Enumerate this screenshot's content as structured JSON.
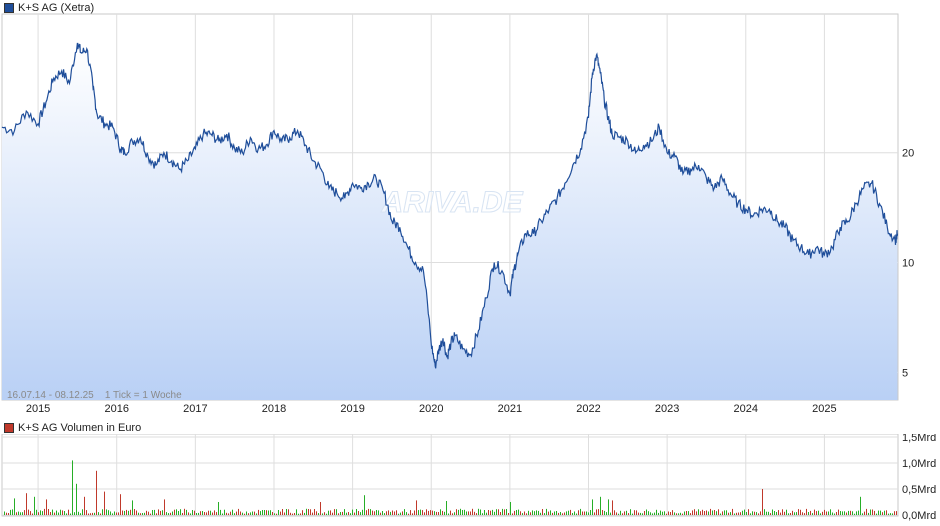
{
  "price_chart": {
    "legend_label": "K+S AG (Xetra)",
    "legend_color": "#1f4e9a",
    "info_text": "16.07.14 - 08.12.25    1 Tick = 1 Woche",
    "watermark": "ARIVA.DE"
  },
  "volume_chart": {
    "legend_label": "K+S AG Volumen in Euro",
    "legend_color": "#c0392b"
  },
  "chart_data": [
    {
      "type": "area",
      "title": "K+S AG (Xetra)",
      "scale": "log",
      "ylim": [
        4.2,
        48
      ],
      "ytick_labels": [
        "5",
        "10",
        "20"
      ],
      "ytick_values": [
        5,
        10,
        20
      ],
      "xtick_labels": [
        "2015",
        "2016",
        "2017",
        "2018",
        "2019",
        "2020",
        "2021",
        "2022",
        "2023",
        "2024",
        "2025"
      ],
      "xlim": [
        "2014-07-16",
        "2025-12-08"
      ],
      "grid": true,
      "line_color": "#1f4e9a",
      "series": [
        {
          "name": "K+S AG (Xetra)",
          "x": [
            2014.54,
            2014.7,
            2014.85,
            2015.0,
            2015.1,
            2015.2,
            2015.3,
            2015.4,
            2015.5,
            2015.55,
            2015.62,
            2015.7,
            2015.75,
            2015.85,
            2015.95,
            2016.05,
            2016.1,
            2016.2,
            2016.3,
            2016.4,
            2016.5,
            2016.6,
            2016.7,
            2016.8,
            2016.9,
            2017.0,
            2017.1,
            2017.2,
            2017.3,
            2017.4,
            2017.5,
            2017.6,
            2017.7,
            2017.8,
            2017.9,
            2018.0,
            2018.1,
            2018.2,
            2018.3,
            2018.4,
            2018.5,
            2018.6,
            2018.7,
            2018.8,
            2018.9,
            2019.0,
            2019.1,
            2019.2,
            2019.3,
            2019.4,
            2019.5,
            2019.6,
            2019.7,
            2019.8,
            2019.9,
            2020.0,
            2020.05,
            2020.1,
            2020.15,
            2020.2,
            2020.25,
            2020.3,
            2020.4,
            2020.5,
            2020.6,
            2020.7,
            2020.8,
            2020.9,
            2021.0,
            2021.05,
            2021.1,
            2021.2,
            2021.3,
            2021.4,
            2021.5,
            2021.6,
            2021.7,
            2021.8,
            2021.9,
            2022.0,
            2022.05,
            2022.1,
            2022.15,
            2022.2,
            2022.25,
            2022.3,
            2022.4,
            2022.5,
            2022.6,
            2022.7,
            2022.8,
            2022.9,
            2023.0,
            2023.1,
            2023.2,
            2023.3,
            2023.4,
            2023.5,
            2023.6,
            2023.7,
            2023.8,
            2023.9,
            2024.0,
            2024.1,
            2024.2,
            2024.3,
            2024.4,
            2024.5,
            2024.6,
            2024.7,
            2024.8,
            2024.9,
            2025.0,
            2025.1,
            2025.2,
            2025.3,
            2025.4,
            2025.5,
            2025.6,
            2025.7,
            2025.8,
            2025.9,
            2025.93
          ],
          "y": [
            23.5,
            23.0,
            26.0,
            24.0,
            27.5,
            32.0,
            33.5,
            31.0,
            40.0,
            37.5,
            38.5,
            30.0,
            25.5,
            24.0,
            23.5,
            20.5,
            20.0,
            21.5,
            22.0,
            19.5,
            18.5,
            20.0,
            19.0,
            18.0,
            19.0,
            20.5,
            22.5,
            22.5,
            21.5,
            22.5,
            20.5,
            20.0,
            22.0,
            20.5,
            21.0,
            23.0,
            21.5,
            22.0,
            23.0,
            21.0,
            19.0,
            18.0,
            16.0,
            15.5,
            15.0,
            16.5,
            16.0,
            16.5,
            17.0,
            15.5,
            13.0,
            12.5,
            11.0,
            10.0,
            9.5,
            6.0,
            5.2,
            5.8,
            6.2,
            5.5,
            6.0,
            6.3,
            5.8,
            5.6,
            6.5,
            8.0,
            10.0,
            9.5,
            8.2,
            9.5,
            10.5,
            12.0,
            12.0,
            13.0,
            14.0,
            15.0,
            16.5,
            18.5,
            20.5,
            25.0,
            33.0,
            37.0,
            33.0,
            28.0,
            25.0,
            22.5,
            22.0,
            21.5,
            20.0,
            21.0,
            21.5,
            23.5,
            20.0,
            19.5,
            17.5,
            18.0,
            18.5,
            17.0,
            16.0,
            17.0,
            15.5,
            14.5,
            14.0,
            13.5,
            14.0,
            14.0,
            13.0,
            12.5,
            11.5,
            11.0,
            10.5,
            11.0,
            10.5,
            11.0,
            12.5,
            13.0,
            14.5,
            16.0,
            16.5,
            14.5,
            12.5,
            11.5,
            12.0
          ]
        }
      ]
    },
    {
      "type": "bar",
      "title": "K+S AG Volumen in Euro",
      "ylim": [
        0,
        1.5
      ],
      "ytick_labels": [
        "0,0Mrd",
        "0,5Mrd",
        "1,0Mrd",
        "1,5Mrd"
      ],
      "ytick_values": [
        0,
        0.5,
        1.0,
        1.5
      ],
      "unit": "Mrd Euro",
      "grid": true,
      "up_color": "#27ae27",
      "down_color": "#c0392b",
      "baseline": 0.06,
      "spikes": [
        {
          "x": 2014.7,
          "value": 0.32,
          "dir": "up"
        },
        {
          "x": 2014.85,
          "value": 0.42,
          "dir": "down"
        },
        {
          "x": 2014.95,
          "value": 0.35,
          "dir": "up"
        },
        {
          "x": 2015.1,
          "value": 0.3,
          "dir": "down"
        },
        {
          "x": 2015.45,
          "value": 1.05,
          "dir": "up"
        },
        {
          "x": 2015.48,
          "value": 0.6,
          "dir": "up"
        },
        {
          "x": 2015.6,
          "value": 0.35,
          "dir": "down"
        },
        {
          "x": 2015.75,
          "value": 0.85,
          "dir": "down"
        },
        {
          "x": 2015.85,
          "value": 0.45,
          "dir": "down"
        },
        {
          "x": 2016.05,
          "value": 0.4,
          "dir": "down"
        },
        {
          "x": 2016.2,
          "value": 0.28,
          "dir": "up"
        },
        {
          "x": 2016.6,
          "value": 0.3,
          "dir": "down"
        },
        {
          "x": 2017.3,
          "value": 0.25,
          "dir": "up"
        },
        {
          "x": 2018.6,
          "value": 0.25,
          "dir": "down"
        },
        {
          "x": 2019.15,
          "value": 0.38,
          "dir": "up"
        },
        {
          "x": 2019.8,
          "value": 0.28,
          "dir": "down"
        },
        {
          "x": 2020.2,
          "value": 0.27,
          "dir": "up"
        },
        {
          "x": 2021.0,
          "value": 0.25,
          "dir": "up"
        },
        {
          "x": 2022.05,
          "value": 0.3,
          "dir": "up"
        },
        {
          "x": 2022.15,
          "value": 0.35,
          "dir": "up"
        },
        {
          "x": 2022.25,
          "value": 0.3,
          "dir": "up"
        },
        {
          "x": 2022.3,
          "value": 0.28,
          "dir": "down"
        },
        {
          "x": 2024.2,
          "value": 0.5,
          "dir": "down"
        },
        {
          "x": 2025.45,
          "value": 0.35,
          "dir": "up"
        }
      ]
    }
  ]
}
